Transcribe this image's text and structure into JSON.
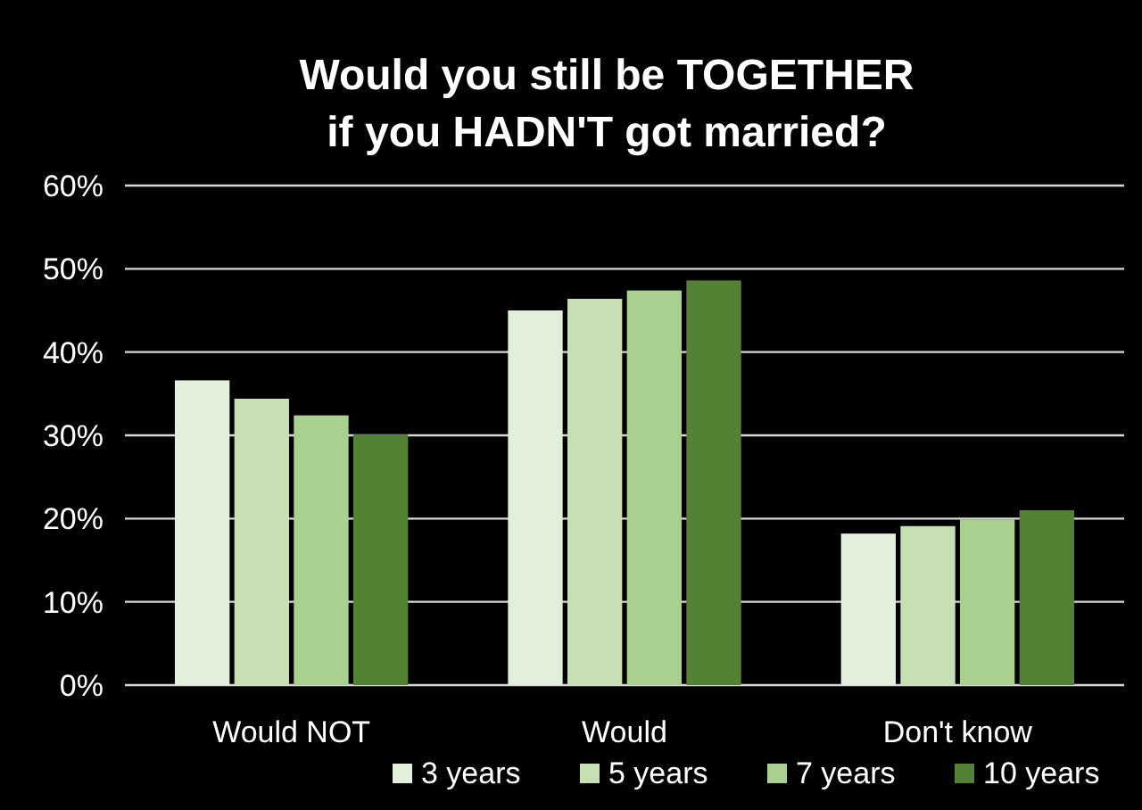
{
  "chart_data": {
    "type": "bar",
    "title": "Would you still be TOGETHER\nif you HADN'T got married?",
    "categories": [
      "Would NOT",
      "Would",
      "Don't know"
    ],
    "series": [
      {
        "name": "3 years",
        "color": "#e2efda",
        "values": [
          36.6,
          45.0,
          18.2
        ]
      },
      {
        "name": "5 years",
        "color": "#c6e0b4",
        "values": [
          34.4,
          46.4,
          19.1
        ]
      },
      {
        "name": "7 years",
        "color": "#a9d08e",
        "values": [
          32.4,
          47.4,
          19.9
        ]
      },
      {
        "name": "10 years",
        "color": "#548235",
        "values": [
          30.1,
          48.6,
          21.0
        ]
      }
    ],
    "ylim": [
      0,
      60
    ],
    "yticks": [
      {
        "value": 0,
        "label": "0%"
      },
      {
        "value": 10,
        "label": "10%"
      },
      {
        "value": 20,
        "label": "20%"
      },
      {
        "value": 30,
        "label": "30%"
      },
      {
        "value": 40,
        "label": "40%"
      },
      {
        "value": 50,
        "label": "50%"
      },
      {
        "value": 60,
        "label": "60%"
      }
    ],
    "grid": "y",
    "legend": "bottom"
  }
}
